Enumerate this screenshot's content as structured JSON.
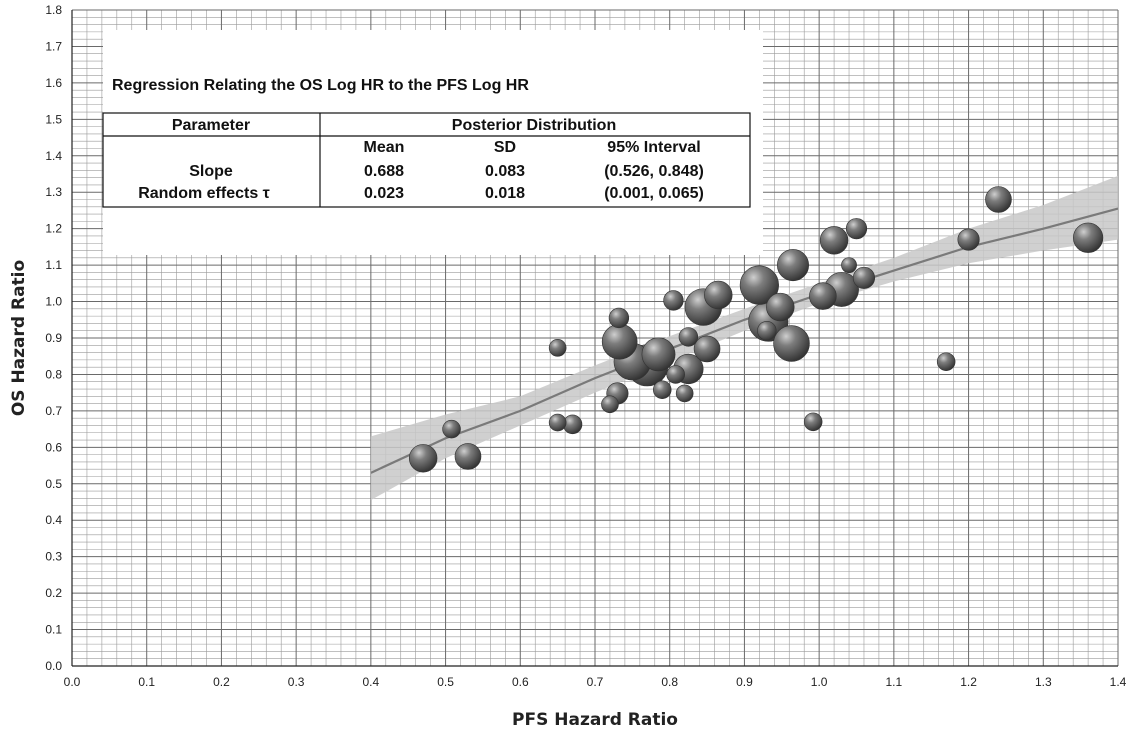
{
  "chart_data": {
    "type": "scatter",
    "title": "",
    "xlabel": "PFS Hazard Ratio",
    "ylabel": "OS Hazard Ratio",
    "xlim": [
      0.0,
      1.4
    ],
    "ylim": [
      0.0,
      1.8
    ],
    "x_ticks": [
      "0.0",
      "0.1",
      "0.2",
      "0.3",
      "0.4",
      "0.5",
      "0.6",
      "0.7",
      "0.8",
      "0.9",
      "1.0",
      "1.1",
      "1.2",
      "1.3",
      "1.4"
    ],
    "y_ticks": [
      "0.0",
      "0.1",
      "0.2",
      "0.3",
      "0.4",
      "0.5",
      "0.6",
      "0.7",
      "0.8",
      "0.9",
      "1.0",
      "1.1",
      "1.2",
      "1.3",
      "1.4",
      "1.5",
      "1.6",
      "1.7",
      "1.8"
    ],
    "grid": true,
    "colors": {
      "bubble": "#5a5a5a",
      "line": "#7a7a7a",
      "band": "#c8c8c8",
      "grid": "#9a9a9a"
    },
    "points": [
      {
        "x": 0.47,
        "y": 0.57,
        "size": 1.1
      },
      {
        "x": 0.508,
        "y": 0.65,
        "size": 0.55
      },
      {
        "x": 0.53,
        "y": 0.575,
        "size": 1.0
      },
      {
        "x": 0.65,
        "y": 0.873,
        "size": 0.5
      },
      {
        "x": 0.65,
        "y": 0.668,
        "size": 0.5
      },
      {
        "x": 0.67,
        "y": 0.663,
        "size": 0.6
      },
      {
        "x": 0.72,
        "y": 0.718,
        "size": 0.5
      },
      {
        "x": 0.73,
        "y": 0.748,
        "size": 0.75
      },
      {
        "x": 0.732,
        "y": 0.955,
        "size": 0.65
      },
      {
        "x": 0.733,
        "y": 0.89,
        "size": 1.5
      },
      {
        "x": 0.75,
        "y": 0.835,
        "size": 1.6
      },
      {
        "x": 0.77,
        "y": 0.825,
        "size": 1.85
      },
      {
        "x": 0.785,
        "y": 0.855,
        "size": 1.4
      },
      {
        "x": 0.79,
        "y": 0.758,
        "size": 0.55
      },
      {
        "x": 0.808,
        "y": 0.8,
        "size": 0.55
      },
      {
        "x": 0.805,
        "y": 1.003,
        "size": 0.65
      },
      {
        "x": 0.82,
        "y": 0.748,
        "size": 0.5
      },
      {
        "x": 0.825,
        "y": 0.815,
        "size": 1.2
      },
      {
        "x": 0.825,
        "y": 0.903,
        "size": 0.6
      },
      {
        "x": 0.85,
        "y": 0.87,
        "size": 1.0
      },
      {
        "x": 0.865,
        "y": 1.018,
        "size": 1.1
      },
      {
        "x": 0.845,
        "y": 0.985,
        "size": 1.6
      },
      {
        "x": 0.92,
        "y": 1.045,
        "size": 1.7
      },
      {
        "x": 0.93,
        "y": 0.92,
        "size": 0.6
      },
      {
        "x": 0.932,
        "y": 0.945,
        "size": 1.75
      },
      {
        "x": 0.948,
        "y": 0.985,
        "size": 1.1
      },
      {
        "x": 0.963,
        "y": 0.885,
        "size": 1.55
      },
      {
        "x": 0.965,
        "y": 1.1,
        "size": 1.3
      },
      {
        "x": 0.992,
        "y": 0.67,
        "size": 0.55
      },
      {
        "x": 1.005,
        "y": 1.015,
        "size": 1.05
      },
      {
        "x": 1.02,
        "y": 1.168,
        "size": 1.1
      },
      {
        "x": 1.03,
        "y": 1.033,
        "size": 1.45
      },
      {
        "x": 1.04,
        "y": 1.1,
        "size": 0.4
      },
      {
        "x": 1.05,
        "y": 1.2,
        "size": 0.7
      },
      {
        "x": 1.06,
        "y": 1.065,
        "size": 0.75
      },
      {
        "x": 1.17,
        "y": 0.835,
        "size": 0.55
      },
      {
        "x": 1.2,
        "y": 1.17,
        "size": 0.75
      },
      {
        "x": 1.24,
        "y": 1.28,
        "size": 1.0
      },
      {
        "x": 1.36,
        "y": 1.175,
        "size": 1.2
      }
    ],
    "regression": {
      "x": [
        0.4,
        0.5,
        0.6,
        0.7,
        0.8,
        0.9,
        1.0,
        1.1,
        1.2,
        1.3,
        1.4
      ],
      "fit": [
        0.53,
        0.625,
        0.7,
        0.79,
        0.87,
        0.95,
        1.02,
        1.085,
        1.15,
        1.2,
        1.255
      ],
      "lower": [
        0.455,
        0.57,
        0.66,
        0.75,
        0.835,
        0.92,
        0.995,
        1.055,
        1.105,
        1.14,
        1.17
      ],
      "upper": [
        0.63,
        0.69,
        0.74,
        0.825,
        0.905,
        0.98,
        1.05,
        1.12,
        1.2,
        1.265,
        1.345
      ]
    },
    "annotation_table": {
      "title": "Regression Relating the OS Log HR to the PFS Log HR",
      "col_header_left": "Parameter",
      "col_header_right": "Posterior Distribution",
      "sub_headers": [
        "Mean",
        "SD",
        "95% Interval"
      ],
      "rows": [
        {
          "name": "Slope",
          "mean": "0.688",
          "sd": "0.083",
          "interval": "(0.526, 0.848)"
        },
        {
          "name": "Random effects τ",
          "mean": "0.023",
          "sd": "0.018",
          "interval": "(0.001, 0.065)"
        }
      ]
    }
  }
}
